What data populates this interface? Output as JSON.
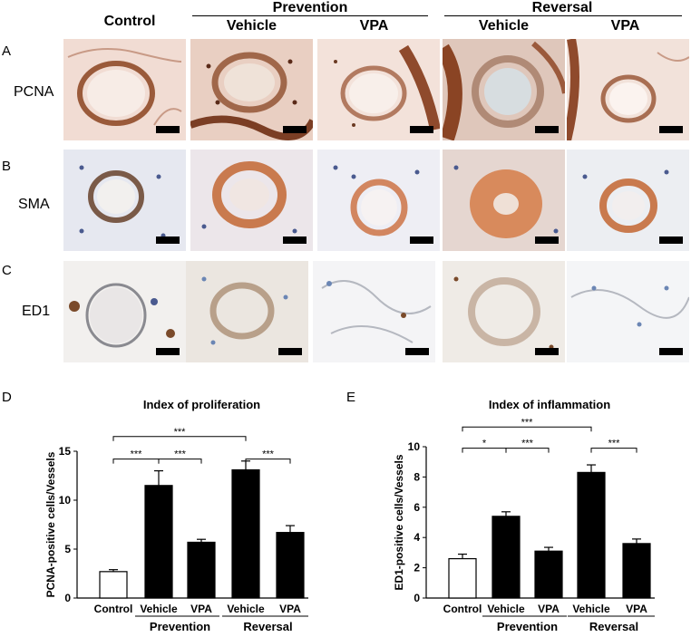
{
  "headers": {
    "control": "Control",
    "prevention": "Prevention",
    "reversal": "Reversal",
    "vehicle_p": "Vehicle",
    "vpa_p": "VPA",
    "vehicle_r": "Vehicle",
    "vpa_r": "VPA"
  },
  "panels": {
    "a": "A",
    "b": "B",
    "c": "C",
    "d": "D",
    "e": "E"
  },
  "rows": {
    "pcna": "PCNA",
    "sma": "SMA",
    "ed1": "ED1"
  },
  "colors": {
    "bar_control": "#ffffff",
    "bar_treated": "#000000",
    "pcna_bg": "#f1dcd3",
    "pcna_cell": "#8a4a2e",
    "sma_bg": "#eaeaf0",
    "sma_ring": "#c97a4e",
    "sma_nuc": "#4a5a8f",
    "ed1_bg": "#eef0f2",
    "ed1_nuc": "#6b86b4",
    "ed1_pos": "#7a4a2a"
  },
  "chart_data": [
    {
      "type": "bar",
      "title": "Index of proliferation",
      "ylabel": "PCNA-positive cells/Vessels",
      "categories": [
        "Control",
        "Vehicle",
        "VPA",
        "Vehicle",
        "VPA"
      ],
      "groups": [
        "Prevention",
        "Reversal"
      ],
      "values": [
        2.7,
        11.5,
        5.7,
        13.1,
        6.7
      ],
      "errors": [
        0.2,
        1.5,
        0.3,
        0.9,
        0.7
      ],
      "ylim": [
        0,
        15
      ],
      "yticks": [
        "0",
        "5",
        "10",
        "15"
      ],
      "significance": [
        "***",
        "***",
        "***",
        "***"
      ]
    },
    {
      "type": "bar",
      "title": "Index of inflammation",
      "ylabel": "ED1-positive cells/Vessels",
      "categories": [
        "Control",
        "Vehicle",
        "VPA",
        "Vehicle",
        "VPA"
      ],
      "groups": [
        "Prevention",
        "Reversal"
      ],
      "values": [
        2.6,
        5.4,
        3.1,
        8.3,
        3.6
      ],
      "errors": [
        0.3,
        0.3,
        0.25,
        0.5,
        0.3
      ],
      "ylim": [
        0,
        10
      ],
      "yticks": [
        "0",
        "2",
        "4",
        "6",
        "8",
        "10"
      ],
      "significance": [
        "***",
        "*",
        "***",
        "***"
      ]
    }
  ]
}
